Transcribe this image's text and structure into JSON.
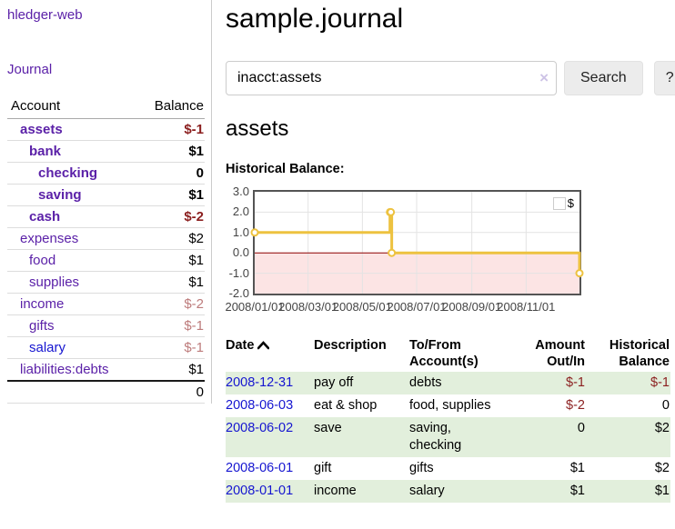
{
  "app": {
    "brand": "hledger-web"
  },
  "sidebar": {
    "journal_link": "Journal",
    "accounts": {
      "headers": {
        "account": "Account",
        "balance": "Balance"
      },
      "rows": [
        {
          "account": "assets",
          "balance": "$-1",
          "depth": 1,
          "bold": true,
          "balance_class": "neg"
        },
        {
          "account": "bank",
          "balance": "$1",
          "depth": 2,
          "bold": true,
          "balance_class": ""
        },
        {
          "account": "checking",
          "balance": "0",
          "depth": 3,
          "bold": true,
          "balance_class": ""
        },
        {
          "account": "saving",
          "balance": "$1",
          "depth": 3,
          "bold": true,
          "balance_class": ""
        },
        {
          "account": "cash",
          "balance": "$-2",
          "depth": 2,
          "bold": true,
          "balance_class": "neg"
        },
        {
          "account": "expenses",
          "balance": "$2",
          "depth": 1,
          "bold": false,
          "balance_class": ""
        },
        {
          "account": "food",
          "balance": "$1",
          "depth": 2,
          "bold": false,
          "balance_class": ""
        },
        {
          "account": "supplies",
          "balance": "$1",
          "depth": 2,
          "bold": false,
          "balance_class": ""
        },
        {
          "account": "income",
          "balance": "$-2",
          "depth": 1,
          "bold": false,
          "balance_class": "neg-faded"
        },
        {
          "account": "gifts",
          "balance": "$-1",
          "depth": 2,
          "bold": false,
          "balance_class": "neg-faded"
        },
        {
          "account": "salary",
          "balance": "$-1",
          "depth": 2,
          "bold": false,
          "balance_class": "neg-faded",
          "link_class": "blue"
        },
        {
          "account": "liabilities:debts",
          "balance": "$1",
          "depth": 1,
          "bold": false,
          "balance_class": ""
        }
      ],
      "total": "0"
    }
  },
  "main": {
    "title": "sample.journal",
    "search": {
      "value": "inacct:assets",
      "clear_icon": "×",
      "search_button": "Search",
      "help_button": "?"
    },
    "account_heading": "assets",
    "chart_heading": "Historical Balance:"
  },
  "chart_data": {
    "type": "line",
    "step": true,
    "title": "Historical Balance:",
    "xlim": [
      "2008-01-01",
      "2008-12-31"
    ],
    "ylim": [
      -2,
      3
    ],
    "yticks": [
      {
        "v": 3,
        "label": "3.0"
      },
      {
        "v": 2,
        "label": "2.0"
      },
      {
        "v": 1,
        "label": "1.0"
      },
      {
        "v": 0,
        "label": "0.0"
      },
      {
        "v": -1,
        "label": "-1.0"
      },
      {
        "v": -2,
        "label": "-2.0"
      }
    ],
    "xticks": [
      {
        "x": "2008-01-01",
        "label": "2008/01/01"
      },
      {
        "x": "2008-03-01",
        "label": "2008/03/01"
      },
      {
        "x": "2008-05-01",
        "label": "2008/05/01"
      },
      {
        "x": "2008-07-01",
        "label": "2008/07/01"
      },
      {
        "x": "2008-09-01",
        "label": "2008/09/01"
      },
      {
        "x": "2008-11-01",
        "label": "2008/11/01"
      }
    ],
    "series": [
      {
        "name": "$",
        "color": "#EDC240",
        "points": [
          {
            "x": "2008-01-01",
            "y": 1
          },
          {
            "x": "2008-06-01",
            "y": 2
          },
          {
            "x": "2008-06-02",
            "y": 2
          },
          {
            "x": "2008-06-03",
            "y": 0
          },
          {
            "x": "2008-12-31",
            "y": -1
          }
        ]
      }
    ],
    "legend": {
      "label": "$",
      "position": "top-right"
    },
    "grid": true,
    "colors": {
      "grid_line": "#e3e3e3",
      "plot_border": "#545454",
      "zero_line": "#8b0000",
      "negative_region_fill": "#fce4e4"
    }
  },
  "register": {
    "headers": [
      {
        "line1": "Date",
        "line2": "",
        "align": "left",
        "sortable": true,
        "sort_icon": "chevron-up"
      },
      {
        "line1": "Description",
        "line2": "",
        "align": "left"
      },
      {
        "line1": "To/From",
        "line2": "Account(s)",
        "align": "left"
      },
      {
        "line1": "Amount",
        "line2": "Out/In",
        "align": "right"
      },
      {
        "line1": "Historical",
        "line2": "Balance",
        "align": "right"
      }
    ],
    "rows": [
      {
        "date": "2008-12-31",
        "description": "pay off",
        "accounts": "debts",
        "amount": "$-1",
        "amount_class": "neg",
        "balance": "$-1",
        "balance_class": "neg"
      },
      {
        "date": "2008-06-03",
        "description": "eat & shop",
        "accounts": "food, supplies",
        "amount": "$-2",
        "amount_class": "neg",
        "balance": "0",
        "balance_class": ""
      },
      {
        "date": "2008-06-02",
        "description": "save",
        "accounts": "saving, checking",
        "amount": "0",
        "amount_class": "",
        "balance": "$2",
        "balance_class": ""
      },
      {
        "date": "2008-06-01",
        "description": "gift",
        "accounts": "gifts",
        "amount": "$1",
        "amount_class": "",
        "balance": "$2",
        "balance_class": ""
      },
      {
        "date": "2008-01-01",
        "description": "income",
        "accounts": "salary",
        "amount": "$1",
        "amount_class": "",
        "balance": "$1",
        "balance_class": ""
      }
    ]
  }
}
